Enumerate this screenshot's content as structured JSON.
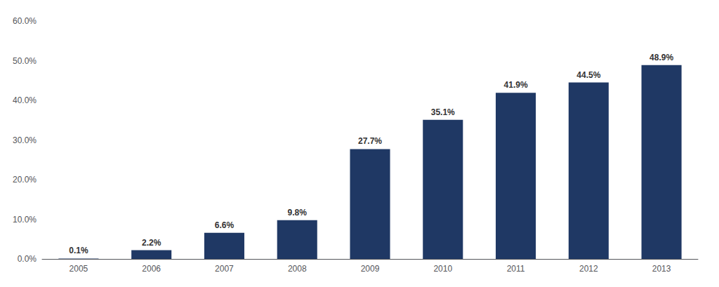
{
  "chart_data": {
    "type": "bar",
    "categories": [
      "2005",
      "2006",
      "2007",
      "2008",
      "2009",
      "2010",
      "2011",
      "2012",
      "2013"
    ],
    "values": [
      0.1,
      2.2,
      6.6,
      9.8,
      27.7,
      35.1,
      41.9,
      44.5,
      48.9
    ],
    "value_labels": [
      "0.1%",
      "2.2%",
      "6.6%",
      "9.8%",
      "27.7%",
      "35.1%",
      "41.9%",
      "44.5%",
      "48.9%"
    ],
    "data_labels": true,
    "color": "#1F3864",
    "ylim": [
      0,
      60
    ],
    "yticks": [
      {
        "value": 0,
        "label": "0.0%"
      },
      {
        "value": 10,
        "label": "10.0%"
      },
      {
        "value": 20,
        "label": "20.0%"
      },
      {
        "value": 30,
        "label": "30.0%"
      },
      {
        "value": 40,
        "label": "40.0%"
      },
      {
        "value": 50,
        "label": "50.0%"
      },
      {
        "value": 60,
        "label": "60.0%"
      }
    ],
    "grid": false
  }
}
